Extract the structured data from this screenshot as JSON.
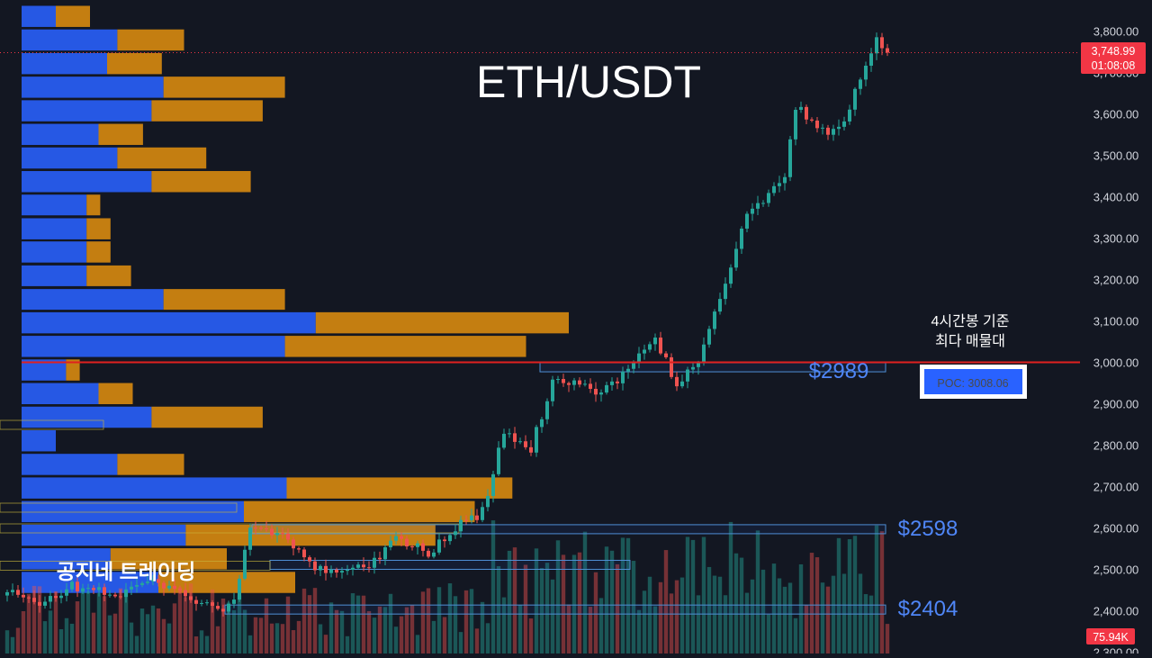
{
  "title": "ETH/USDT",
  "watermark": "공지네 트레이딩",
  "annotation_text": [
    "4시간봉 기준",
    "최다 매물대"
  ],
  "poc_label": "POC: 3008.06",
  "current_price": "3,748.99",
  "countdown": "01:08:08",
  "volume_label": "75.94K",
  "level_labels": [
    "$2989",
    "$2598",
    "$2404"
  ],
  "colors": {
    "background": "#131722",
    "up": "#26a69a",
    "down": "#ef5350",
    "profile_up": "#2962ff",
    "profile_down": "#d88a0f",
    "poc_line": "#e02020",
    "level_text": "#4f86f7"
  },
  "chart_data": {
    "type": "candlestick",
    "symbol": "ETH/USDT",
    "timeframe": "4h",
    "ylim": [
      2300,
      3850
    ],
    "y_ticks": [
      "2,300.00",
      "2,400.00",
      "2,500.00",
      "2,600.00",
      "2,700.00",
      "2,800.00",
      "2,900.00",
      "3,000.00",
      "3,100.00",
      "3,200.00",
      "3,300.00",
      "3,400.00",
      "3,500.00",
      "3,600.00",
      "3,700.00",
      "3,800.00"
    ],
    "y_tick_values": [
      2300,
      2400,
      2500,
      2600,
      2700,
      2800,
      2900,
      3000,
      3100,
      3200,
      3300,
      3400,
      3500,
      3600,
      3700,
      3800
    ],
    "last_price": 3748.99,
    "poc": 3008.06,
    "poc_line_price": 3001,
    "horizontal_levels": [
      2989,
      2598,
      2404
    ],
    "grid": false,
    "price_anchors": [
      [
        0,
        2445
      ],
      [
        6,
        2420
      ],
      [
        12,
        2460
      ],
      [
        20,
        2440
      ],
      [
        26,
        2470
      ],
      [
        32,
        2455
      ],
      [
        38,
        2400
      ],
      [
        42,
        2420
      ],
      [
        45,
        2600
      ],
      [
        50,
        2590
      ],
      [
        56,
        2510
      ],
      [
        62,
        2500
      ],
      [
        67,
        2510
      ],
      [
        72,
        2580
      ],
      [
        78,
        2540
      ],
      [
        83,
        2600
      ],
      [
        88,
        2640
      ],
      [
        92,
        2830
      ],
      [
        97,
        2790
      ],
      [
        101,
        2960
      ],
      [
        106,
        2950
      ],
      [
        110,
        2930
      ],
      [
        115,
        2980
      ],
      [
        120,
        3060
      ],
      [
        124,
        2950
      ],
      [
        128,
        3000
      ],
      [
        133,
        3200
      ],
      [
        137,
        3350
      ],
      [
        141,
        3400
      ],
      [
        144,
        3460
      ],
      [
        146,
        3620
      ],
      [
        150,
        3560
      ],
      [
        154,
        3560
      ],
      [
        158,
        3680
      ],
      [
        161,
        3780
      ],
      [
        163,
        3749
      ]
    ],
    "volume_profile_rows": [
      {
        "price_low": 3811,
        "price_high": 3862,
        "up": 0.1,
        "down": 0.1
      },
      {
        "price_low": 3754,
        "price_high": 3805,
        "up": 0.28,
        "down": 0.195
      },
      {
        "price_low": 3697,
        "price_high": 3748,
        "up": 0.25,
        "down": 0.16
      },
      {
        "price_low": 3640,
        "price_high": 3691,
        "up": 0.415,
        "down": 0.355
      },
      {
        "price_low": 3583,
        "price_high": 3634,
        "up": 0.38,
        "down": 0.325
      },
      {
        "price_low": 3526,
        "price_high": 3577,
        "up": 0.225,
        "down": 0.13
      },
      {
        "price_low": 3469,
        "price_high": 3520,
        "up": 0.28,
        "down": 0.26
      },
      {
        "price_low": 3412,
        "price_high": 3463,
        "up": 0.38,
        "down": 0.29
      },
      {
        "price_low": 3356,
        "price_high": 3406,
        "up": 0.19,
        "down": 0.04
      },
      {
        "price_low": 3298,
        "price_high": 3349,
        "up": 0.19,
        "down": 0.07
      },
      {
        "price_low": 3242,
        "price_high": 3293,
        "up": 0.19,
        "down": 0.07
      },
      {
        "price_low": 3185,
        "price_high": 3235,
        "up": 0.19,
        "down": 0.13
      },
      {
        "price_low": 3128,
        "price_high": 3178,
        "up": 0.415,
        "down": 0.355
      },
      {
        "price_low": 3071,
        "price_high": 3122,
        "up": 0.86,
        "down": 0.74
      },
      {
        "price_low": 3014,
        "price_high": 3065,
        "up": 0.77,
        "down": 0.705
      },
      {
        "price_low": 2957,
        "price_high": 3008,
        "up": 0.13,
        "down": 0.04
      },
      {
        "price_low": 2900,
        "price_high": 2951,
        "up": 0.225,
        "down": 0.1
      },
      {
        "price_low": 2843,
        "price_high": 2894,
        "up": 0.38,
        "down": 0.325
      },
      {
        "price_low": 2786,
        "price_high": 2837,
        "up": 0.1,
        "down": 0.0
      },
      {
        "price_low": 2729,
        "price_high": 2780,
        "up": 0.28,
        "down": 0.195
      },
      {
        "price_low": 2672,
        "price_high": 2723,
        "up": 0.775,
        "down": 0.66
      },
      {
        "price_low": 2615,
        "price_high": 2666,
        "up": 0.65,
        "down": 0.675
      },
      {
        "price_low": 2558,
        "price_high": 2609,
        "up": 0.48,
        "down": 0.73
      },
      {
        "price_low": 2501,
        "price_high": 2552,
        "up": 0.26,
        "down": 0.34
      },
      {
        "price_low": 2444,
        "price_high": 2495,
        "up": 0.4,
        "down": 0.4
      }
    ]
  }
}
